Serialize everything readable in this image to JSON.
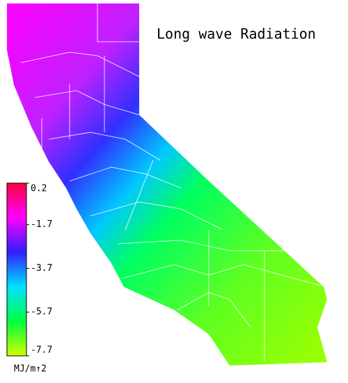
{
  "title": "Long wave Radiation",
  "colorbar": {
    "lim": [
      -7.7,
      0.2
    ],
    "ticks": [
      0.2,
      -1.7,
      -3.7,
      -5.7,
      -7.7
    ],
    "unit": "MJ/m↑2",
    "colors": [
      "#ff0040",
      "#ff00ff",
      "#3020ff",
      "#00e0ff",
      "#00ff40",
      "#d0ff00"
    ]
  }
}
